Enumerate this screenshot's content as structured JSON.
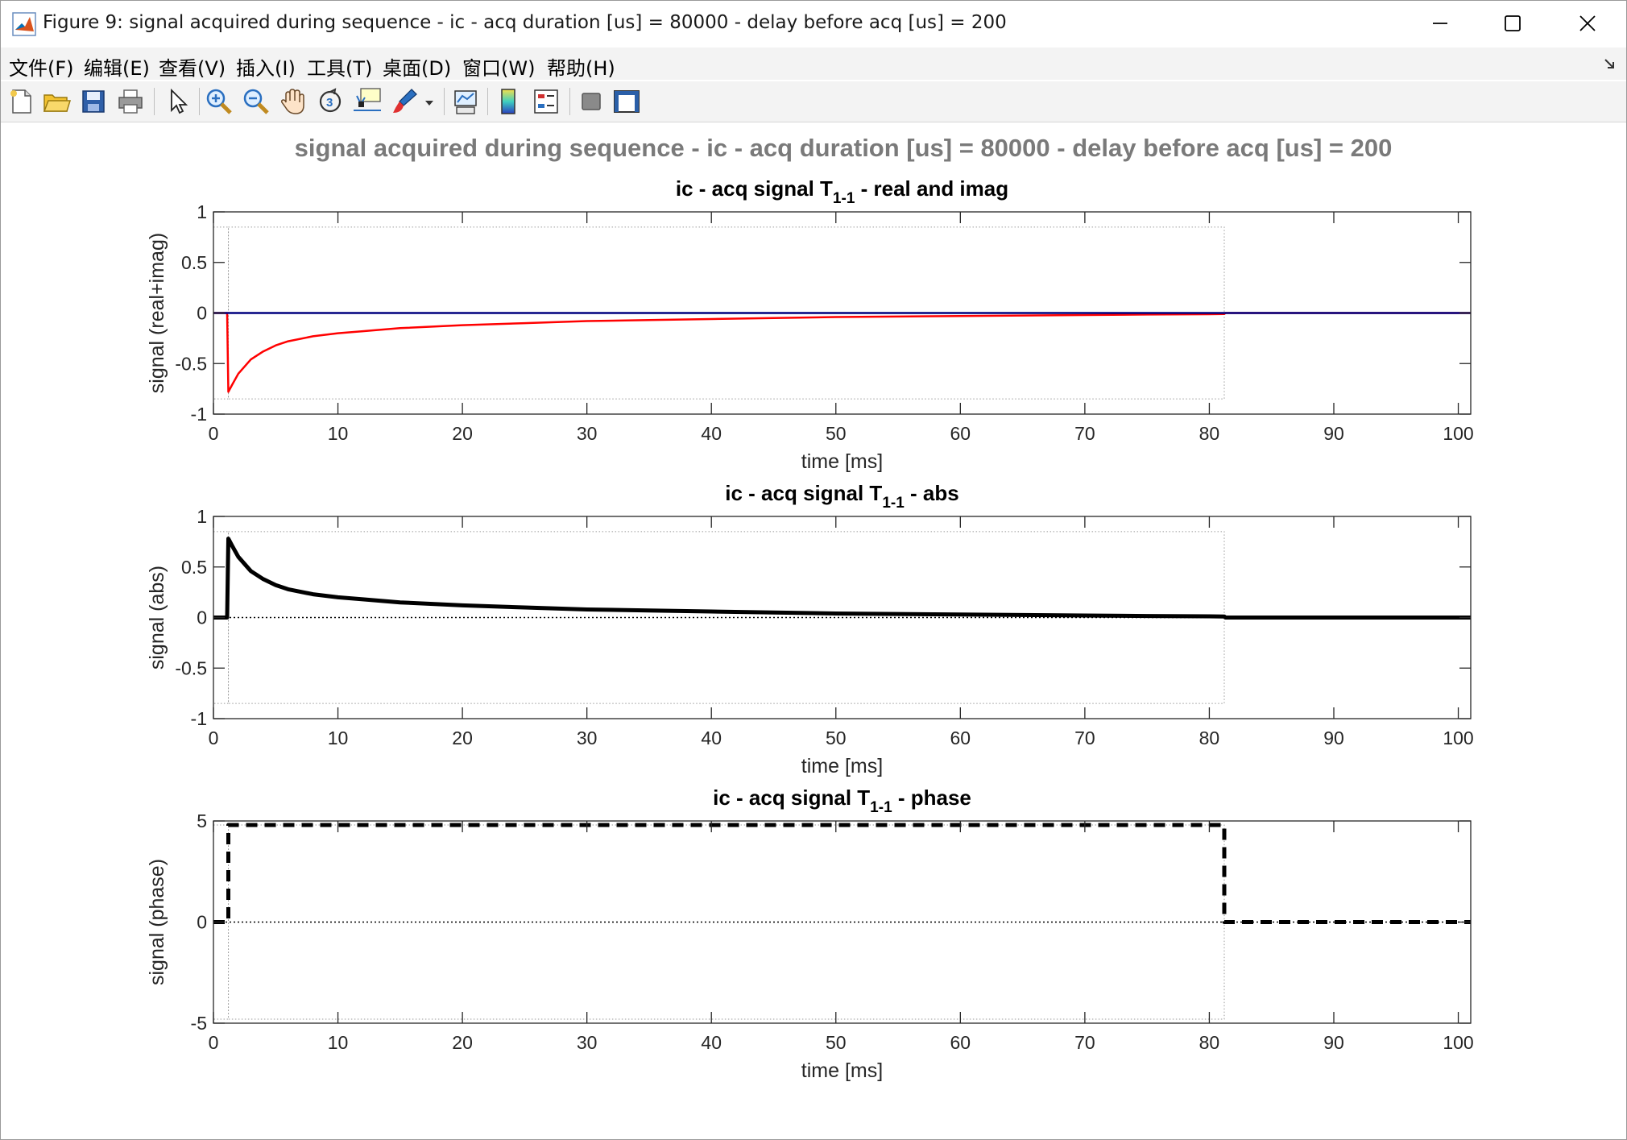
{
  "window": {
    "title": "Figure 9: signal acquired during sequence - ic - acq duration [us] = 80000 - delay before acq [us] = 200",
    "icon": "matlab-logo-icon",
    "buttons": [
      "minimize-icon",
      "maximize-icon",
      "close-icon"
    ]
  },
  "menu": {
    "items": [
      "文件(F)",
      "编辑(E)",
      "查看(V)",
      "插入(I)",
      "工具(T)",
      "桌面(D)",
      "窗口(W)",
      "帮助(H)"
    ],
    "dock_icon": "dock-arrow-icon"
  },
  "toolbar": {
    "icons": [
      "new-figure-icon",
      "open-file-icon",
      "save-icon",
      "print-icon",
      "edit-plot-pointer-icon",
      "zoom-in-icon",
      "zoom-out-icon",
      "pan-hand-icon",
      "rotate-3d-icon",
      "data-cursor-icon",
      "brush-icon",
      "brush-dropdown-icon",
      "link-plot-icon",
      "insert-colorbar-icon",
      "insert-legend-icon",
      "hide-plot-tools-icon",
      "show-plot-tools-icon"
    ]
  },
  "figure": {
    "suptitle": "signal acquired during sequence - ic - acq duration [us] = 80000 - delay before acq [us] = 200"
  },
  "colors": {
    "real": "#ff0000",
    "imag": "#00007f",
    "abs": "#000000",
    "suptitle": "#7a7a7a",
    "window_chrome": "#f3f3f3"
  },
  "chart_data": [
    {
      "type": "line",
      "title": {
        "prefix": "ic - acq signal T",
        "sub": "1-1",
        "suffix": " - real and imag"
      },
      "xlabel": "time [ms]",
      "ylabel": "signal (real+imag)",
      "xlim": [
        0,
        101
      ],
      "ylim": [
        -1,
        1
      ],
      "xticks": [
        0,
        10,
        20,
        30,
        40,
        50,
        60,
        70,
        80,
        90,
        100
      ],
      "yticks": [
        {
          "value": -1,
          "label": "-1"
        },
        {
          "value": -0.5,
          "label": "-0.5"
        },
        {
          "value": 0,
          "label": "0"
        },
        {
          "value": 0.5,
          "label": "0.5"
        },
        {
          "value": 1,
          "label": "1"
        }
      ],
      "grid": false,
      "series": [
        {
          "color": "#ff0000",
          "width": 2.5,
          "dash": "",
          "x": [
            0,
            1.1,
            1.2,
            1.5,
            2,
            3,
            4,
            5,
            6,
            8,
            10,
            12,
            15,
            20,
            25,
            30,
            35,
            40,
            45,
            50,
            55,
            60,
            65,
            70,
            75,
            80,
            81.2,
            81.3,
            101
          ],
          "y": [
            0,
            0,
            -0.78,
            -0.71,
            -0.6,
            -0.46,
            -0.38,
            -0.32,
            -0.28,
            -0.23,
            -0.2,
            -0.18,
            -0.15,
            -0.12,
            -0.1,
            -0.08,
            -0.07,
            -0.06,
            -0.05,
            -0.04,
            -0.035,
            -0.03,
            -0.025,
            -0.02,
            -0.015,
            -0.012,
            -0.01,
            0,
            0
          ]
        },
        {
          "color": "#00007f",
          "width": 2.5,
          "dash": "",
          "x": [
            0,
            101
          ],
          "y": [
            0,
            0
          ]
        }
      ],
      "annotations": [
        {
          "type": "dotted-box",
          "x": [
            1.2,
            81.2
          ],
          "y": [
            -0.85,
            0.85
          ]
        },
        {
          "type": "dotted-box",
          "x": [
            0,
            1.2
          ],
          "y": [
            -0.85,
            0.85
          ]
        }
      ]
    },
    {
      "type": "line",
      "title": {
        "prefix": "ic - acq signal T",
        "sub": "1-1",
        "suffix": " - abs"
      },
      "xlabel": "time [ms]",
      "ylabel": "signal (abs)",
      "xlim": [
        0,
        101
      ],
      "ylim": [
        -1,
        1
      ],
      "xticks": [
        0,
        10,
        20,
        30,
        40,
        50,
        60,
        70,
        80,
        90,
        100
      ],
      "yticks": [
        {
          "value": -1,
          "label": "-1"
        },
        {
          "value": -0.5,
          "label": "-0.5"
        },
        {
          "value": 0,
          "label": "0"
        },
        {
          "value": 0.5,
          "label": "0.5"
        },
        {
          "value": 1,
          "label": "1"
        }
      ],
      "grid": false,
      "series": [
        {
          "color": "#000000",
          "width": 5,
          "dash": "",
          "x": [
            0,
            1.1,
            1.2,
            1.5,
            2,
            3,
            4,
            5,
            6,
            8,
            10,
            12,
            15,
            20,
            25,
            30,
            35,
            40,
            45,
            50,
            55,
            60,
            65,
            70,
            75,
            80,
            81.2,
            81.3,
            101
          ],
          "y": [
            0,
            0,
            0.78,
            0.71,
            0.6,
            0.46,
            0.38,
            0.32,
            0.28,
            0.23,
            0.2,
            0.18,
            0.15,
            0.12,
            0.1,
            0.08,
            0.07,
            0.06,
            0.05,
            0.04,
            0.035,
            0.03,
            0.025,
            0.02,
            0.015,
            0.012,
            0.01,
            0,
            0
          ]
        },
        {
          "color": "#000000",
          "width": 1.5,
          "dash": "2,3",
          "x": [
            0,
            101
          ],
          "y": [
            0,
            0
          ]
        }
      ],
      "annotations": [
        {
          "type": "dotted-box",
          "x": [
            1.2,
            81.2
          ],
          "y": [
            -0.85,
            0.85
          ]
        },
        {
          "type": "dotted-box",
          "x": [
            0,
            1.2
          ],
          "y": [
            -0.85,
            0.85
          ]
        }
      ]
    },
    {
      "type": "line",
      "title": {
        "prefix": "ic - acq signal T",
        "sub": "1-1",
        "suffix": " - phase"
      },
      "xlabel": "time [ms]",
      "ylabel": "signal (phase)",
      "xlim": [
        0,
        101
      ],
      "ylim": [
        -5,
        5
      ],
      "xticks": [
        0,
        10,
        20,
        30,
        40,
        50,
        60,
        70,
        80,
        90,
        100
      ],
      "yticks": [
        {
          "value": -5,
          "label": "-5"
        },
        {
          "value": 0,
          "label": "0"
        },
        {
          "value": 5,
          "label": "5"
        }
      ],
      "grid": false,
      "series": [
        {
          "color": "#000000",
          "width": 5,
          "dash": "14,9",
          "x": [
            0,
            1.2,
            1.2,
            81.2,
            81.2,
            101
          ],
          "y": [
            0,
            0,
            4.8,
            4.8,
            0,
            0
          ]
        },
        {
          "color": "#000000",
          "width": 1.5,
          "dash": "2,3",
          "x": [
            0,
            101
          ],
          "y": [
            0,
            0
          ]
        }
      ],
      "annotations": [
        {
          "type": "dotted-box",
          "x": [
            1.2,
            81.2
          ],
          "y": [
            -4.8,
            4.8
          ]
        },
        {
          "type": "dotted-box",
          "x": [
            0,
            1.2
          ],
          "y": [
            -4.8,
            4.8
          ]
        }
      ]
    }
  ]
}
